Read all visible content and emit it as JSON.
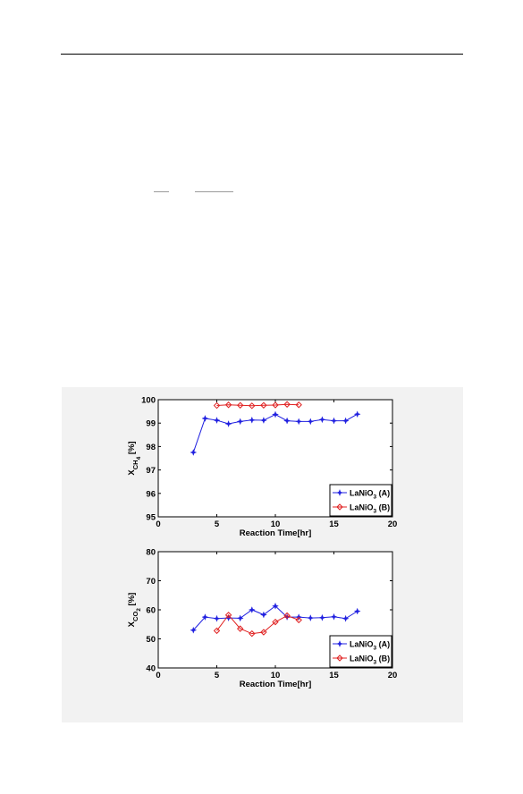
{
  "colors": {
    "series_a": "#1f1fe0",
    "series_b": "#e02020",
    "figure_bg": "#f2f2f2"
  },
  "chart_data": [
    {
      "type": "line",
      "title": "",
      "xlabel": "Reaction Time[hr]",
      "ylabel": "X_CH4 [%]",
      "ylabel_main": "X",
      "ylabel_sub": "CH",
      "ylabel_subsub": "4",
      "ylabel_unit": " [%]",
      "xlim": [
        0,
        20
      ],
      "ylim": [
        95,
        100
      ],
      "xticks": [
        "0",
        "5",
        "10",
        "15",
        "20"
      ],
      "yticks": [
        "95",
        "96",
        "97",
        "98",
        "99",
        "100"
      ],
      "grid": false,
      "legend_position": "bottom-right",
      "series": [
        {
          "name": "LaNiO3 (A)",
          "legend_main": "LaNiO",
          "legend_sub": "3",
          "legend_suffix": " (A)",
          "marker": "star",
          "color": "#1f1fe0",
          "x": [
            3,
            4,
            5,
            6,
            7,
            8,
            9,
            10,
            11,
            12,
            13,
            14,
            15,
            16,
            17
          ],
          "y": [
            97.75,
            99.2,
            99.12,
            98.97,
            99.07,
            99.13,
            99.12,
            99.37,
            99.1,
            99.07,
            99.07,
            99.15,
            99.1,
            99.1,
            99.38
          ]
        },
        {
          "name": "LaNiO3 (B)",
          "legend_main": "LaNiO",
          "legend_sub": "3",
          "legend_suffix": " (B)",
          "marker": "diamond",
          "color": "#e02020",
          "x": [
            5,
            6,
            7,
            8,
            9,
            10,
            11,
            12
          ],
          "y": [
            99.75,
            99.78,
            99.76,
            99.74,
            99.76,
            99.77,
            99.8,
            99.78
          ]
        }
      ]
    },
    {
      "type": "line",
      "title": "",
      "xlabel": "Reaction Time[hr]",
      "ylabel": "X_CO2 [%]",
      "ylabel_main": "X",
      "ylabel_sub": "CO",
      "ylabel_subsub": "2",
      "ylabel_unit": " [%]",
      "xlim": [
        0,
        20
      ],
      "ylim": [
        40,
        80
      ],
      "xticks": [
        "0",
        "5",
        "10",
        "15",
        "20"
      ],
      "yticks": [
        "40",
        "50",
        "60",
        "70",
        "80"
      ],
      "grid": false,
      "legend_position": "bottom-right",
      "series": [
        {
          "name": "LaNiO3 (A)",
          "legend_main": "LaNiO",
          "legend_sub": "3",
          "legend_suffix": " (A)",
          "marker": "star",
          "color": "#1f1fe0",
          "x": [
            3,
            4,
            5,
            6,
            7,
            8,
            9,
            10,
            11,
            12,
            13,
            14,
            15,
            16,
            17
          ],
          "y": [
            53.0,
            57.5,
            57.0,
            57.2,
            57.1,
            60.0,
            58.3,
            61.3,
            57.5,
            57.5,
            57.2,
            57.3,
            57.6,
            57.0,
            59.5
          ]
        },
        {
          "name": "LaNiO3 (B)",
          "legend_main": "LaNiO",
          "legend_sub": "3",
          "legend_suffix": " (B)",
          "marker": "diamond",
          "color": "#e02020",
          "x": [
            5,
            6,
            7,
            8,
            9,
            10,
            11,
            12
          ],
          "y": [
            52.8,
            58.2,
            53.5,
            51.8,
            52.3,
            55.8,
            58.0,
            56.5
          ]
        }
      ]
    }
  ]
}
